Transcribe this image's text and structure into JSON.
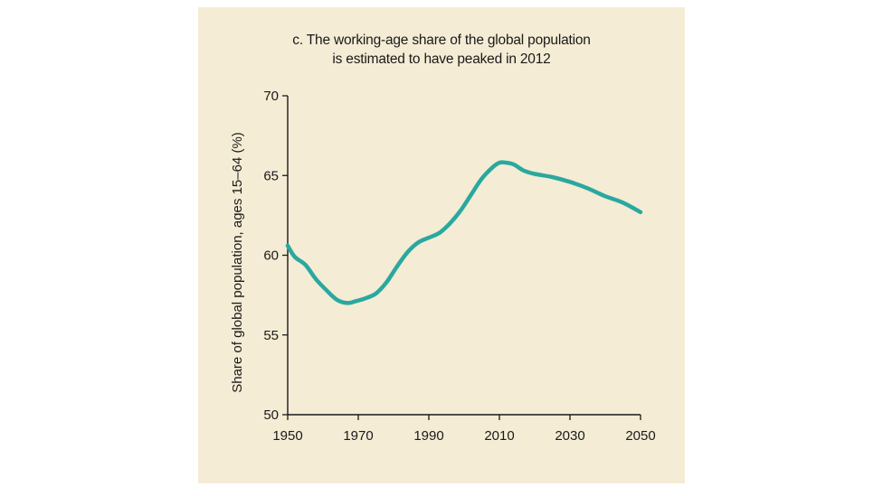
{
  "chart_data": {
    "type": "line",
    "title": "c. The working-age share of the global population is estimated to have peaked in 2012",
    "title_lines": [
      "c. The working-age share of the global population",
      "is estimated to have peaked in 2012"
    ],
    "xlabel": "",
    "ylabel": "Share of global population, ages 15–64 (%)",
    "xlim": [
      1950,
      2050
    ],
    "ylim": [
      50,
      70
    ],
    "x_ticks": [
      1950,
      1970,
      1990,
      2010,
      2030,
      2050
    ],
    "y_ticks": [
      50,
      55,
      60,
      65,
      70
    ],
    "grid": false,
    "series": [
      {
        "color": "#2aa8a0",
        "x": [
          1950,
          1952,
          1955,
          1958,
          1961,
          1964,
          1967,
          1969,
          1972,
          1975,
          1978,
          1981,
          1984,
          1987,
          1990,
          1993,
          1996,
          1999,
          2002,
          2005,
          2008,
          2010,
          2012,
          2014,
          2017,
          2020,
          2025,
          2030,
          2035,
          2040,
          2045,
          2050
        ],
        "y": [
          60.6,
          59.9,
          59.4,
          58.5,
          57.8,
          57.2,
          57.0,
          57.1,
          57.3,
          57.6,
          58.3,
          59.3,
          60.2,
          60.8,
          61.1,
          61.4,
          62.0,
          62.8,
          63.8,
          64.8,
          65.5,
          65.8,
          65.8,
          65.7,
          65.3,
          65.1,
          64.9,
          64.6,
          64.2,
          63.7,
          63.3,
          62.7
        ]
      }
    ]
  },
  "colors": {
    "panel_background": "#f4ecd4",
    "axis": "#1a1a1a",
    "line": "#2aa8a0"
  }
}
